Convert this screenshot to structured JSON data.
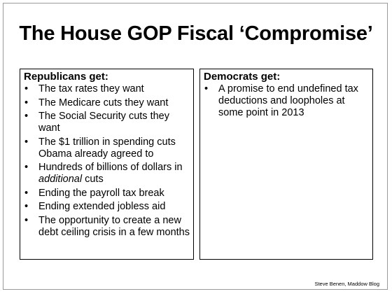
{
  "title": "The House GOP Fiscal ‘Compromise’",
  "republicans": {
    "heading": "Republicans get:",
    "items": [
      {
        "text": "The tax rates they want"
      },
      {
        "text": "The Medicare cuts they want"
      },
      {
        "text": "The Social Security cuts they want"
      },
      {
        "text": "The $1 trillion in spending cuts Obama already agreed to"
      },
      {
        "text_before": "Hundreds of billions of dollars in ",
        "text_italic": "additional",
        "text_after": " cuts"
      },
      {
        "text": "Ending the payroll tax break"
      },
      {
        "text": "Ending extended jobless aid"
      },
      {
        "text": "The opportunity to create a new debt ceiling crisis in a few months"
      }
    ]
  },
  "democrats": {
    "heading": "Democrats get:",
    "items": [
      {
        "text": "A promise to end undefined tax deductions and loopholes at some point in 2013"
      }
    ]
  },
  "bullet_glyph": "•",
  "credit": "Steve Benen, Maddow Blog"
}
